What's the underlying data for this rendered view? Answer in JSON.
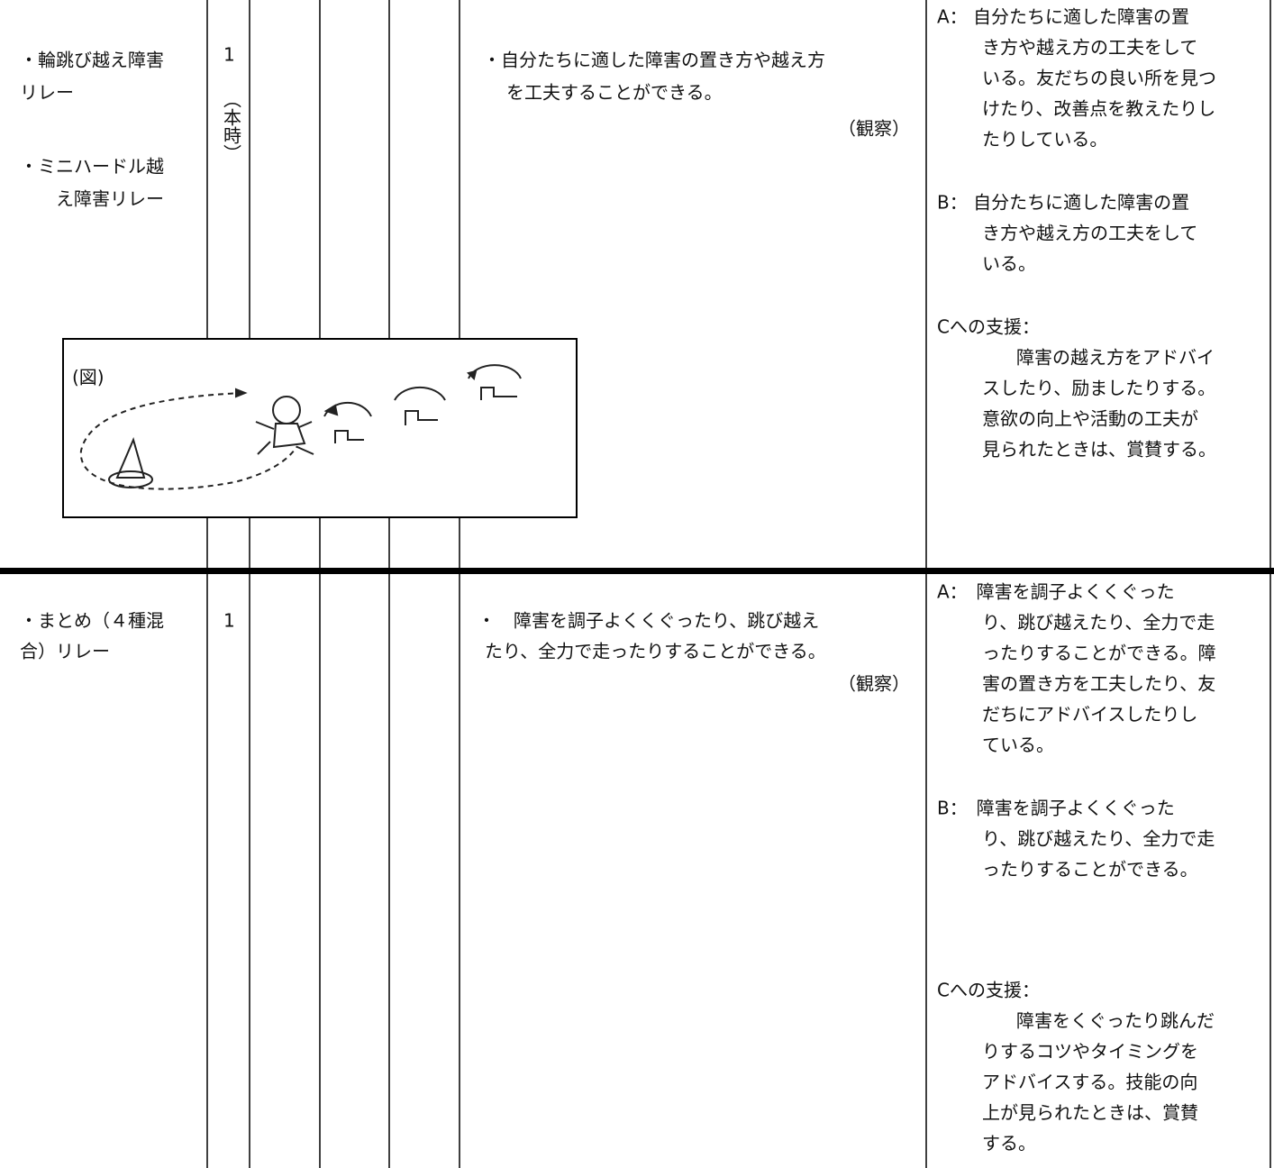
{
  "rows": [
    {
      "activity": [
        "・輪跳び越え障害",
        "リレー",
        "・ミニハードル越",
        "え障害リレー"
      ],
      "hours": "1",
      "hours_note": "（本時）",
      "goal": [
        "・自分たちに適した障害の置き方や越え方",
        "を工夫することができる。"
      ],
      "method": "（観察）",
      "evaluation": [
        "A：  自分たちに適した障害の置",
        "き方や越え方の工夫をして",
        "いる。友だちの良い所を見つ",
        "けたり、改善点を教えたりし",
        "たりしている。",
        "B：  自分たちに適した障害の置",
        "き方や越え方の工夫をして",
        "いる。",
        "Cへの支援：",
        "障害の越え方をアドバイ",
        "スしたり、励ましたりする。",
        "意欲の向上や活動の工夫が",
        "見られたときは、賞賛する。"
      ]
    },
    {
      "activity": [
        "・まとめ（４種混",
        "合）リレー"
      ],
      "hours": "1",
      "goal": [
        "・　障害を調子よくくぐったり、跳び越え",
        "たり、全力で走ったりすることができる。"
      ],
      "method": "（観察）",
      "evaluation": [
        "A：　障害を調子よくくぐった",
        "り、跳び越えたり、全力で走",
        "ったりすることができる。障",
        "害の置き方を工夫したり、友",
        "だちにアドバイスしたりし",
        "ている。",
        "B：　障害を調子よくくぐった",
        "り、跳び越えたり、全力で走",
        "ったりすることができる。",
        "Cへの支援：",
        "障害をくぐったり跳んだ",
        "りするコツやタイミングを",
        "アドバイスする。技能の向",
        "上が見られたときは、賞賛",
        "する。"
      ]
    }
  ],
  "figure": {
    "label": "(図)"
  }
}
